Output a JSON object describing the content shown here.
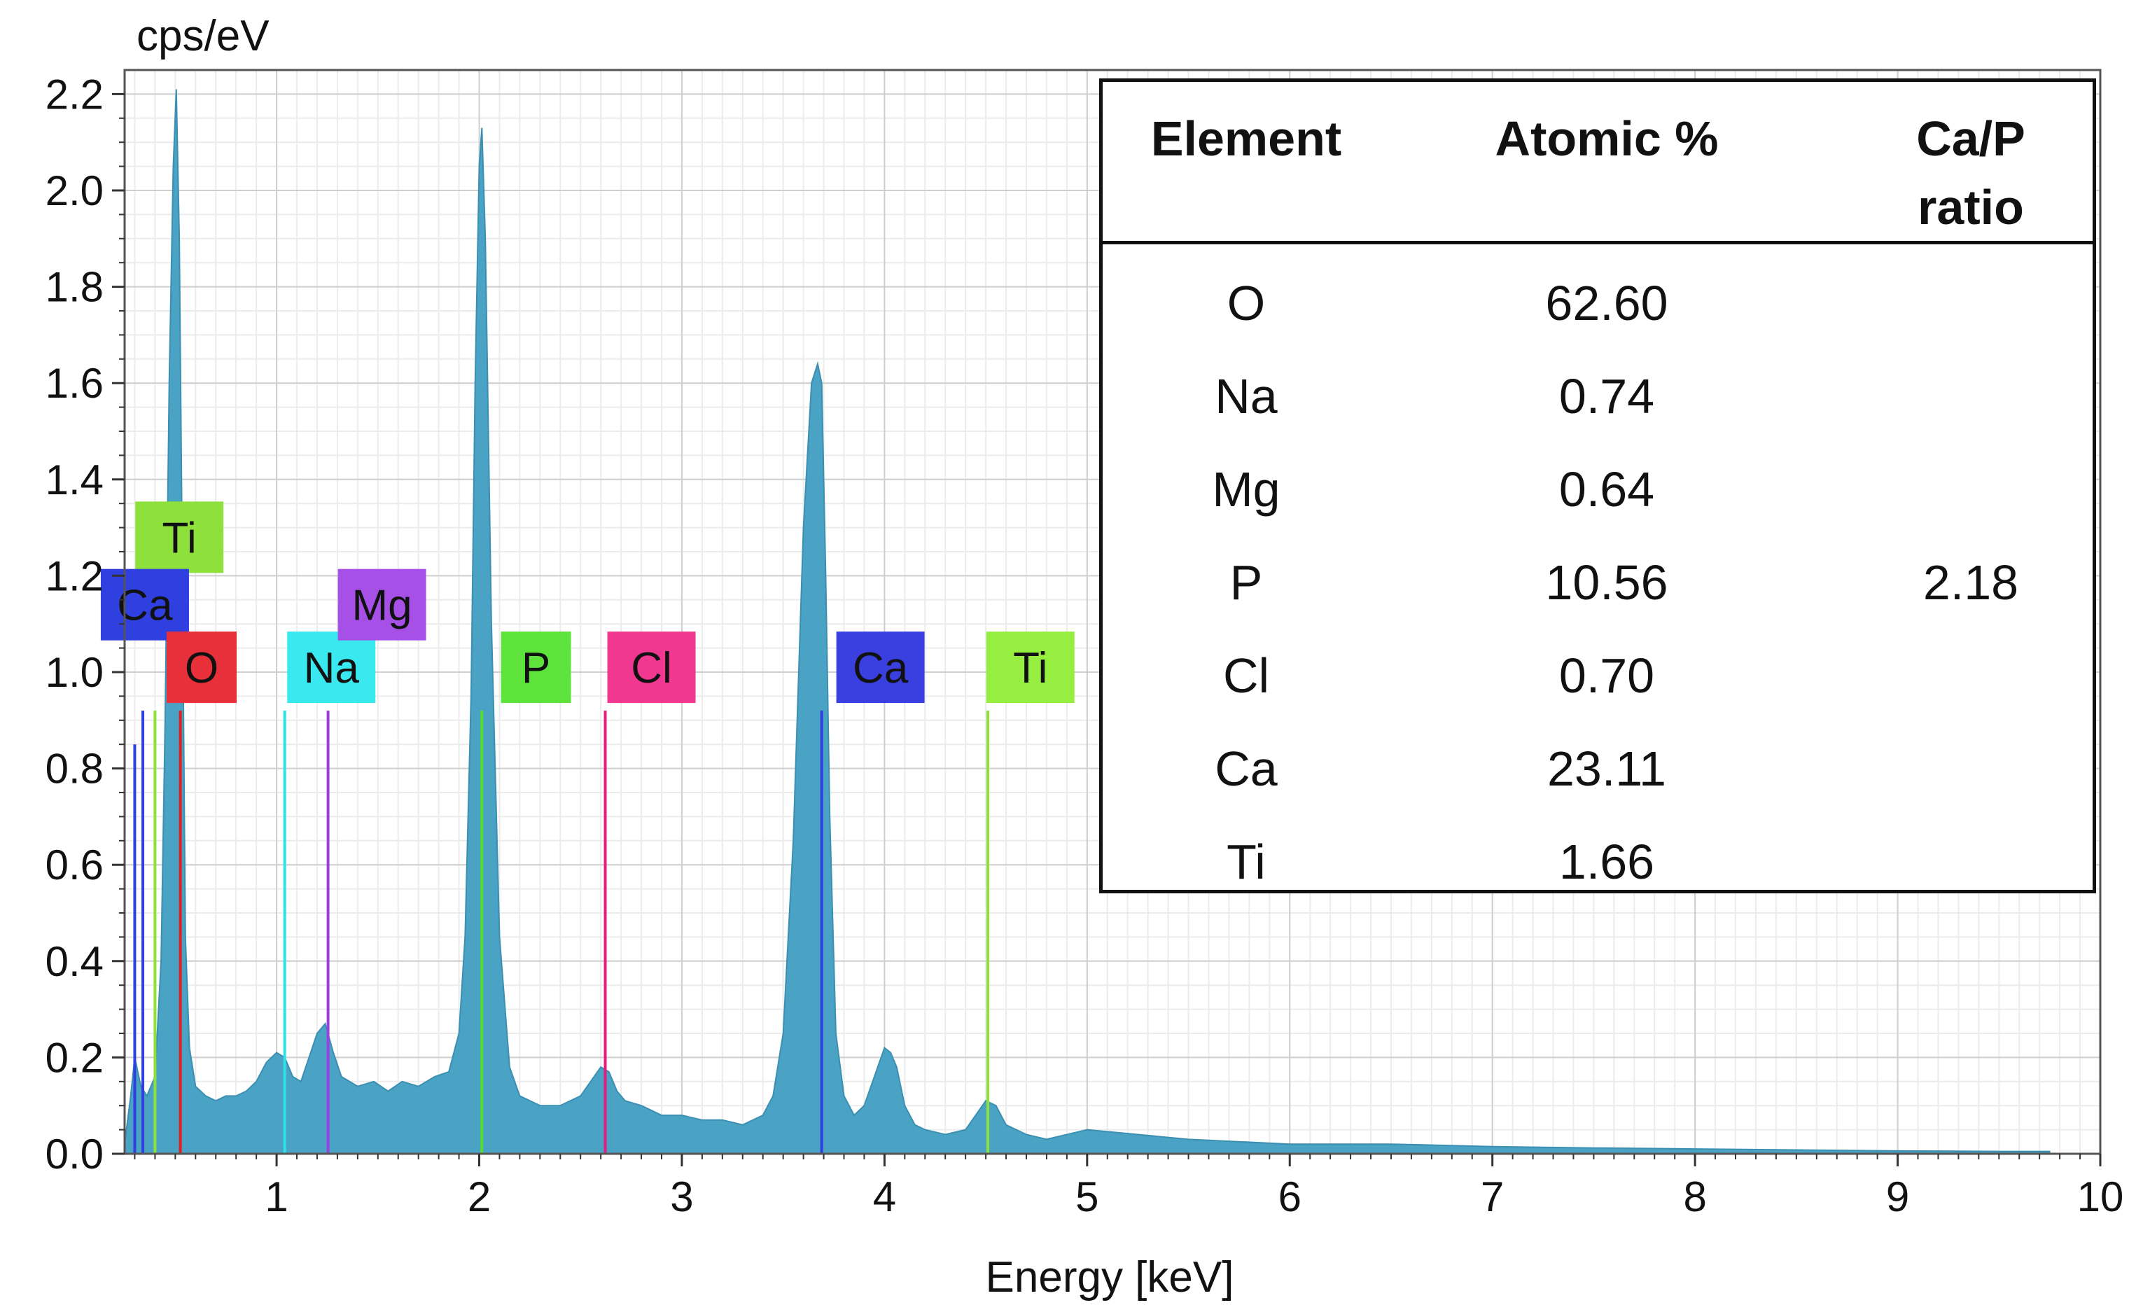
{
  "chart_data": {
    "type": "area",
    "ylabel": "cps/eV",
    "xlabel": "Energy [keV]",
    "xlim": [
      0.25,
      10
    ],
    "ylim": [
      0,
      2.25
    ],
    "x_ticks": [
      "1",
      "2",
      "3",
      "4",
      "5",
      "6",
      "7",
      "8",
      "9",
      "10"
    ],
    "y_ticks": [
      "0.0",
      "0.2",
      "0.4",
      "0.6",
      "0.8",
      "1.0",
      "1.2",
      "1.4",
      "1.6",
      "1.8",
      "2.0",
      "2.2"
    ],
    "grid": true,
    "spectrum_color": "#4aa3c4",
    "spectrum": {
      "x": [
        0.25,
        0.28,
        0.3,
        0.33,
        0.36,
        0.4,
        0.43,
        0.45,
        0.47,
        0.49,
        0.505,
        0.52,
        0.535,
        0.55,
        0.57,
        0.6,
        0.65,
        0.7,
        0.75,
        0.8,
        0.85,
        0.9,
        0.95,
        1.0,
        1.04,
        1.08,
        1.12,
        1.16,
        1.2,
        1.24,
        1.28,
        1.32,
        1.4,
        1.48,
        1.55,
        1.62,
        1.7,
        1.78,
        1.85,
        1.9,
        1.93,
        1.96,
        1.98,
        2.0,
        2.013,
        2.03,
        2.06,
        2.1,
        2.15,
        2.2,
        2.25,
        2.3,
        2.4,
        2.5,
        2.55,
        2.6,
        2.64,
        2.68,
        2.72,
        2.8,
        2.9,
        3.0,
        3.1,
        3.2,
        3.3,
        3.4,
        3.45,
        3.5,
        3.55,
        3.6,
        3.64,
        3.67,
        3.69,
        3.71,
        3.73,
        3.76,
        3.8,
        3.85,
        3.9,
        3.95,
        4.0,
        4.03,
        4.06,
        4.1,
        4.15,
        4.2,
        4.3,
        4.4,
        4.45,
        4.5,
        4.55,
        4.6,
        4.7,
        4.8,
        4.9,
        5.0,
        5.5,
        6.0,
        6.5,
        7.0,
        7.5,
        8.0,
        8.5,
        9.0,
        9.5,
        9.75
      ],
      "y": [
        0.02,
        0.12,
        0.2,
        0.14,
        0.12,
        0.16,
        0.4,
        0.9,
        1.6,
        2.05,
        2.21,
        1.9,
        1.2,
        0.45,
        0.22,
        0.14,
        0.12,
        0.11,
        0.12,
        0.12,
        0.13,
        0.15,
        0.19,
        0.21,
        0.2,
        0.16,
        0.15,
        0.2,
        0.25,
        0.27,
        0.21,
        0.16,
        0.14,
        0.15,
        0.13,
        0.15,
        0.14,
        0.16,
        0.17,
        0.25,
        0.45,
        0.95,
        1.6,
        2.05,
        2.13,
        1.9,
        1.1,
        0.45,
        0.18,
        0.12,
        0.11,
        0.1,
        0.1,
        0.12,
        0.15,
        0.18,
        0.17,
        0.13,
        0.11,
        0.1,
        0.08,
        0.08,
        0.07,
        0.07,
        0.06,
        0.08,
        0.12,
        0.25,
        0.65,
        1.3,
        1.6,
        1.64,
        1.6,
        1.2,
        0.7,
        0.25,
        0.12,
        0.08,
        0.1,
        0.16,
        0.22,
        0.21,
        0.18,
        0.1,
        0.06,
        0.05,
        0.04,
        0.05,
        0.08,
        0.11,
        0.1,
        0.06,
        0.04,
        0.03,
        0.04,
        0.05,
        0.03,
        0.02,
        0.02,
        0.015,
        0.012,
        0.01,
        0.008,
        0.006,
        0.005,
        0.005
      ]
    },
    "element_lines": [
      {
        "element": "Ca",
        "x": 0.3,
        "y": 0.85,
        "color": "#2f3fe0"
      },
      {
        "element": "Ca",
        "x": 0.34,
        "y": 0.92,
        "color": "#2f3fe0"
      },
      {
        "element": "Ti",
        "x": 0.4,
        "y": 0.92,
        "color": "#8ee03a"
      },
      {
        "element": "O",
        "x": 0.525,
        "y": 0.92,
        "color": "#e02020"
      },
      {
        "element": "Na",
        "x": 1.04,
        "y": 0.92,
        "color": "#2ee0e8"
      },
      {
        "element": "Mg",
        "x": 1.254,
        "y": 0.92,
        "color": "#9a40e0"
      },
      {
        "element": "P",
        "x": 2.013,
        "y": 0.92,
        "color": "#55dd33"
      },
      {
        "element": "Cl",
        "x": 2.622,
        "y": 0.92,
        "color": "#e81c7c"
      },
      {
        "element": "Ca",
        "x": 3.69,
        "y": 0.92,
        "color": "#2f3fe0"
      },
      {
        "element": "Ti",
        "x": 4.51,
        "y": 0.92,
        "color": "#8ee03a"
      }
    ],
    "element_tags": [
      {
        "label": "Ti",
        "x": 0.52,
        "y": 1.28,
        "color": "#8ee03a"
      },
      {
        "label": "Ca",
        "x": 0.35,
        "y": 1.14,
        "color": "#2f3fe0"
      },
      {
        "label": "O",
        "x": 0.63,
        "y": 1.01,
        "color": "#e8303a"
      },
      {
        "label": "Na",
        "x": 1.27,
        "y": 1.01,
        "color": "#3ae8f0"
      },
      {
        "label": "Mg",
        "x": 1.52,
        "y": 1.14,
        "color": "#a650e8"
      },
      {
        "label": "P",
        "x": 2.28,
        "y": 1.01,
        "color": "#5ee23c"
      },
      {
        "label": "Cl",
        "x": 2.85,
        "y": 1.01,
        "color": "#f03890"
      },
      {
        "label": "Ca",
        "x": 3.98,
        "y": 1.01,
        "color": "#3a40e0"
      },
      {
        "label": "Ti",
        "x": 4.72,
        "y": 1.01,
        "color": "#96ee40"
      }
    ]
  },
  "table": {
    "headers": [
      "Element",
      "Atomic %",
      "Ca/P",
      "ratio"
    ],
    "rows": [
      {
        "element": "O",
        "atomic": "62.60",
        "ratio": ""
      },
      {
        "element": "Na",
        "atomic": "0.74",
        "ratio": ""
      },
      {
        "element": "Mg",
        "atomic": "0.64",
        "ratio": ""
      },
      {
        "element": "P",
        "atomic": "10.56",
        "ratio": "2.18"
      },
      {
        "element": "Cl",
        "atomic": "0.70",
        "ratio": ""
      },
      {
        "element": "Ca",
        "atomic": "23.11",
        "ratio": ""
      },
      {
        "element": "Ti",
        "atomic": "1.66",
        "ratio": ""
      }
    ]
  }
}
